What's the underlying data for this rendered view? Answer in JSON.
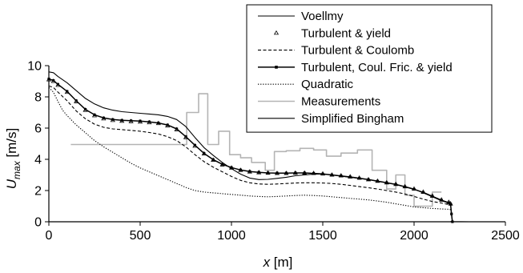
{
  "chart_data": {
    "type": "line",
    "xlabel": "x [m]",
    "ylabel": "U_max [m/s]",
    "xlim": [
      0,
      2500
    ],
    "ylim": [
      0,
      10
    ],
    "x_ticks": [
      0,
      500,
      1000,
      1500,
      2000,
      2500
    ],
    "y_ticks": [
      0,
      2,
      4,
      6,
      8,
      10
    ],
    "grid": false,
    "legend_position": "top-right",
    "series": [
      {
        "name": "Voellmy",
        "style": "solid",
        "color": "#000000",
        "x": [
          0,
          25,
          50,
          100,
          150,
          200,
          250,
          300,
          350,
          400,
          450,
          500,
          550,
          600,
          650,
          700,
          750,
          800,
          850,
          900,
          950,
          1000,
          1050,
          1100,
          1150,
          1200,
          1250,
          1300,
          1350,
          1400,
          1450,
          1500,
          1550,
          1600,
          1650,
          1700,
          1750,
          1800,
          1850,
          1900,
          1950,
          2000,
          2050,
          2100,
          2150,
          2190,
          2200,
          2205,
          2210
        ],
        "y": [
          9.6,
          9.55,
          9.3,
          8.9,
          8.4,
          7.9,
          7.55,
          7.3,
          7.15,
          7.05,
          7.0,
          6.95,
          6.9,
          6.85,
          6.75,
          6.55,
          6.1,
          5.4,
          4.75,
          4.25,
          3.8,
          3.4,
          3.05,
          2.8,
          2.7,
          2.72,
          2.78,
          2.85,
          2.95,
          3.0,
          3.05,
          3.05,
          3.0,
          2.92,
          2.85,
          2.78,
          2.7,
          2.6,
          2.5,
          2.4,
          2.25,
          2.1,
          1.85,
          1.6,
          1.35,
          1.2,
          1.1,
          0.5,
          0
        ]
      },
      {
        "name": "Turbulent & yield",
        "style": "triangles",
        "color": "#000000",
        "x": [
          0,
          25,
          50,
          100,
          150,
          200,
          250,
          300,
          350,
          400,
          450,
          500,
          550,
          600,
          650,
          700,
          750,
          800,
          850,
          900,
          950,
          1000,
          1050,
          1100,
          1150,
          1200,
          1250,
          1300,
          1350,
          1400,
          1450,
          1500,
          1550,
          1600,
          1650,
          1700,
          1750,
          1800,
          1850,
          1900,
          1950,
          2000,
          2050,
          2100,
          2150,
          2190,
          2200
        ],
        "y": [
          9.1,
          9.0,
          8.75,
          8.3,
          7.7,
          7.15,
          6.8,
          6.6,
          6.5,
          6.45,
          6.42,
          6.4,
          6.35,
          6.3,
          6.15,
          5.9,
          5.4,
          4.85,
          4.35,
          3.95,
          3.65,
          3.45,
          3.3,
          3.2,
          3.15,
          3.12,
          3.1,
          3.1,
          3.12,
          3.12,
          3.1,
          3.07,
          3.0,
          2.95,
          2.88,
          2.8,
          2.7,
          2.6,
          2.5,
          2.4,
          2.25,
          2.1,
          1.9,
          1.65,
          1.4,
          1.25,
          1.15
        ]
      },
      {
        "name": "Turbulent & Coulomb",
        "style": "dashed",
        "color": "#000000",
        "x": [
          0,
          25,
          50,
          100,
          150,
          200,
          250,
          300,
          350,
          400,
          450,
          500,
          550,
          600,
          650,
          700,
          750,
          800,
          850,
          900,
          950,
          1000,
          1050,
          1100,
          1150,
          1200,
          1250,
          1300,
          1350,
          1400,
          1450,
          1500,
          1550,
          1600,
          1650,
          1700,
          1750,
          1800,
          1850,
          1900,
          1950,
          2000,
          2050,
          2100,
          2150,
          2190,
          2200
        ],
        "y": [
          8.7,
          8.6,
          8.3,
          7.75,
          7.1,
          6.6,
          6.25,
          6.05,
          5.95,
          5.9,
          5.85,
          5.8,
          5.72,
          5.62,
          5.45,
          5.2,
          4.8,
          4.3,
          3.85,
          3.5,
          3.2,
          2.9,
          2.65,
          2.5,
          2.42,
          2.4,
          2.42,
          2.45,
          2.48,
          2.5,
          2.5,
          2.48,
          2.45,
          2.4,
          2.33,
          2.25,
          2.18,
          2.1,
          2.0,
          1.9,
          1.78,
          1.62,
          1.45,
          1.3,
          1.2,
          1.1,
          1.05
        ]
      },
      {
        "name": "Turbulent, Coul. Fric. & yield",
        "style": "solid-squares",
        "color": "#000000",
        "x": [
          0,
          25,
          50,
          100,
          150,
          200,
          250,
          300,
          350,
          400,
          450,
          500,
          550,
          600,
          650,
          700,
          750,
          800,
          850,
          900,
          950,
          1000,
          1050,
          1100,
          1150,
          1200,
          1250,
          1300,
          1350,
          1400,
          1450,
          1500,
          1550,
          1600,
          1650,
          1700,
          1750,
          1800,
          1850,
          1900,
          1950,
          2000,
          2050,
          2100,
          2150,
          2190,
          2200,
          2205,
          2210
        ],
        "y": [
          9.15,
          9.05,
          8.8,
          8.35,
          7.75,
          7.2,
          6.85,
          6.65,
          6.55,
          6.5,
          6.47,
          6.45,
          6.4,
          6.33,
          6.2,
          5.95,
          5.45,
          4.9,
          4.38,
          3.98,
          3.68,
          3.47,
          3.32,
          3.22,
          3.17,
          3.13,
          3.12,
          3.12,
          3.13,
          3.13,
          3.1,
          3.06,
          3.0,
          2.94,
          2.87,
          2.79,
          2.7,
          2.6,
          2.5,
          2.39,
          2.24,
          2.08,
          1.88,
          1.63,
          1.38,
          1.22,
          1.12,
          0.5,
          0
        ]
      },
      {
        "name": "Quadratic",
        "style": "dotted",
        "color": "#000000",
        "x": [
          0,
          25,
          50,
          75,
          100,
          150,
          200,
          250,
          300,
          350,
          400,
          450,
          500,
          550,
          600,
          650,
          700,
          750,
          800,
          850,
          900,
          950,
          1000,
          1050,
          1100,
          1150,
          1200,
          1250,
          1300,
          1350,
          1400,
          1450,
          1500,
          1550,
          1600,
          1650,
          1700,
          1750,
          1800,
          1850,
          1900,
          1950,
          2000,
          2050,
          2100,
          2150,
          2190,
          2200
        ],
        "y": [
          8.6,
          8.3,
          7.7,
          7.15,
          6.8,
          6.2,
          5.7,
          5.2,
          4.8,
          4.45,
          4.1,
          3.75,
          3.45,
          3.2,
          2.95,
          2.7,
          2.45,
          2.2,
          2.0,
          1.9,
          1.85,
          1.8,
          1.75,
          1.7,
          1.65,
          1.62,
          1.6,
          1.62,
          1.65,
          1.68,
          1.7,
          1.68,
          1.65,
          1.6,
          1.55,
          1.5,
          1.45,
          1.4,
          1.33,
          1.25,
          1.15,
          1.05,
          0.95,
          0.9,
          0.85,
          0.82,
          0.8,
          0.78
        ]
      },
      {
        "name": "Measurements",
        "style": "step",
        "color": "#b4b4b4",
        "x": [
          120,
          755,
          755,
          820,
          820,
          870,
          870,
          930,
          930,
          990,
          990,
          1050,
          1050,
          1110,
          1110,
          1185,
          1185,
          1235,
          1235,
          1300,
          1300,
          1375,
          1375,
          1450,
          1450,
          1520,
          1520,
          1600,
          1600,
          1690,
          1690,
          1770,
          1770,
          1850,
          1850,
          1900,
          1900,
          1950,
          1950,
          2000,
          2000,
          2100,
          2100,
          2150
        ],
        "y": [
          4.95,
          4.95,
          7.0,
          7.0,
          8.2,
          8.2,
          4.95,
          4.95,
          5.8,
          5.8,
          4.3,
          4.3,
          4.1,
          4.1,
          3.8,
          3.8,
          3.3,
          3.3,
          4.5,
          4.5,
          4.55,
          4.55,
          4.7,
          4.7,
          4.6,
          4.6,
          4.2,
          4.2,
          4.4,
          4.4,
          4.6,
          4.6,
          3.3,
          3.3,
          2.1,
          2.1,
          3.0,
          3.0,
          1.7,
          1.7,
          1.0,
          1.0,
          1.9,
          1.9
        ]
      },
      {
        "name": "Simplified Bingham",
        "style": "solid",
        "color": "#000000",
        "x": [
          2200,
          2210,
          2300,
          2380
        ],
        "y": [
          0.02,
          0.01,
          0.0,
          0.0
        ]
      }
    ]
  }
}
